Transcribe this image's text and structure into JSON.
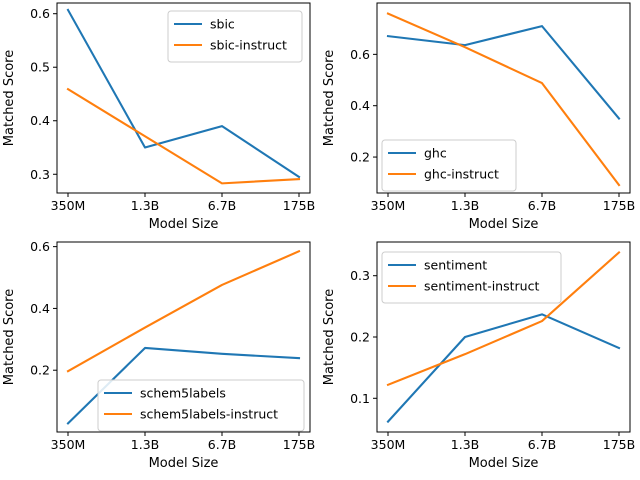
{
  "chart_data": [
    {
      "type": "line",
      "categories": [
        "350M",
        "1.3B",
        "6.7B",
        "175B"
      ],
      "xlabel": "Model Size",
      "ylabel": "Matched Score",
      "ylim": [
        0.265,
        0.62
      ],
      "yticks": [
        0.3,
        0.4,
        0.5,
        0.6
      ],
      "ytick_labels": [
        "0.3",
        "0.4",
        "0.5",
        "0.6"
      ],
      "legend_position": "upper-right",
      "grid": false,
      "series": [
        {
          "name": "sbic",
          "values": [
            0.607,
            0.35,
            0.39,
            0.295
          ],
          "color": "#1f77b4"
        },
        {
          "name": "sbic-instruct",
          "values": [
            0.459,
            0.371,
            0.283,
            0.291
          ],
          "color": "#ff7f0e"
        }
      ]
    },
    {
      "type": "line",
      "categories": [
        "350M",
        "1.3B",
        "6.7B",
        "175B"
      ],
      "xlabel": "Model Size",
      "ylabel": "Matched Score",
      "ylim": [
        0.06,
        0.8
      ],
      "yticks": [
        0.2,
        0.4,
        0.6
      ],
      "ytick_labels": [
        "0.2",
        "0.4",
        "0.6"
      ],
      "legend_position": "lower-left",
      "grid": false,
      "series": [
        {
          "name": "ghc",
          "values": [
            0.671,
            0.636,
            0.71,
            0.35
          ],
          "color": "#1f77b4"
        },
        {
          "name": "ghc-instruct",
          "values": [
            0.759,
            0.628,
            0.488,
            0.091
          ],
          "color": "#ff7f0e"
        }
      ]
    },
    {
      "type": "line",
      "categories": [
        "350M",
        "1.3B",
        "6.7B",
        "175B"
      ],
      "xlabel": "Model Size",
      "ylabel": "Matched Score",
      "ylim": [
        0.0,
        0.615
      ],
      "yticks": [
        0.2,
        0.4,
        0.6
      ],
      "ytick_labels": [
        "0.2",
        "0.4",
        "0.6"
      ],
      "legend_position": "lower-right",
      "grid": false,
      "series": [
        {
          "name": "schem5labels",
          "values": [
            0.028,
            0.272,
            0.253,
            0.239
          ],
          "color": "#1f77b4"
        },
        {
          "name": "schem5labels-instruct",
          "values": [
            0.197,
            0.338,
            0.476,
            0.585
          ],
          "color": "#ff7f0e"
        }
      ]
    },
    {
      "type": "line",
      "categories": [
        "350M",
        "1.3B",
        "6.7B",
        "175B"
      ],
      "xlabel": "Model Size",
      "ylabel": "Matched Score",
      "ylim": [
        0.045,
        0.355
      ],
      "yticks": [
        0.1,
        0.2,
        0.3
      ],
      "ytick_labels": [
        "0.1",
        "0.2",
        "0.3"
      ],
      "legend_position": "upper-left",
      "grid": false,
      "series": [
        {
          "name": "sentiment",
          "values": [
            0.062,
            0.2,
            0.237,
            0.182
          ],
          "color": "#1f77b4"
        },
        {
          "name": "sentiment-instruct",
          "values": [
            0.122,
            0.172,
            0.226,
            0.338
          ],
          "color": "#ff7f0e"
        }
      ]
    }
  ]
}
